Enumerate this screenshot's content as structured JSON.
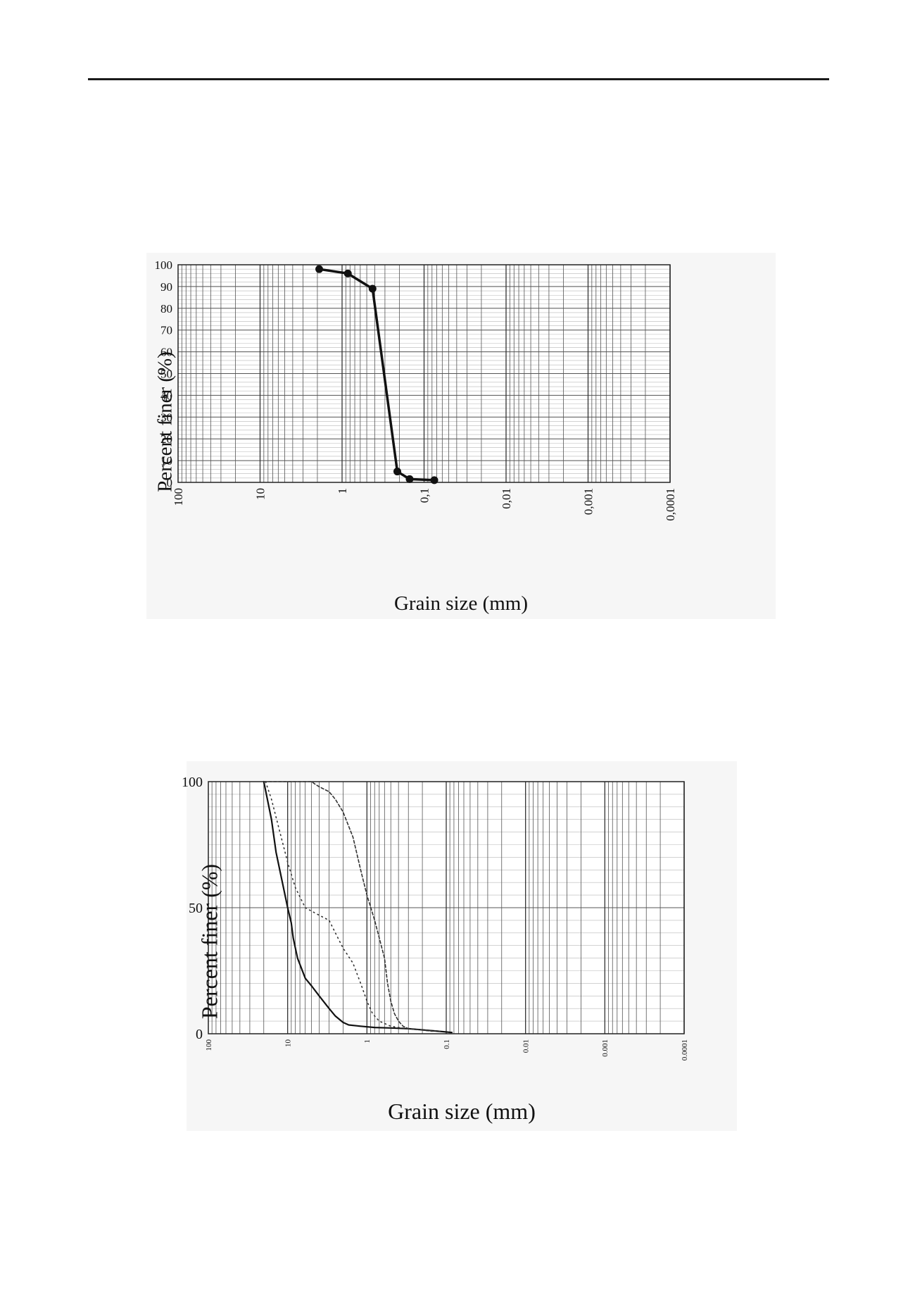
{
  "chart_data": [
    {
      "type": "line",
      "title": "",
      "xlabel": "Grain size (mm)",
      "ylabel": "Percent finer (%)",
      "x_scale": "log",
      "x_reversed": true,
      "xlim": [
        100,
        0.0001
      ],
      "ylim": [
        0,
        100
      ],
      "x_tick_labels": [
        "100",
        "10",
        "1",
        "0,1",
        "0,01",
        "0,001",
        "0,0001"
      ],
      "y_tick_labels": [
        "0",
        "10",
        "20",
        "30",
        "40",
        "50",
        "60",
        "70",
        "80",
        "90",
        "100"
      ],
      "grid": true,
      "markers": true,
      "series": [
        {
          "x": [
            1.9,
            0.85,
            0.425,
            0.212,
            0.15,
            0.075
          ],
          "y": [
            98,
            96,
            89,
            5,
            1.5,
            1
          ]
        }
      ]
    },
    {
      "type": "line",
      "title": "",
      "xlabel": "Grain size (mm)",
      "ylabel": "Percent finer (%)",
      "x_scale": "log",
      "x_reversed": true,
      "xlim": [
        100,
        0.0001
      ],
      "ylim": [
        0,
        100
      ],
      "x_tick_labels": [
        "100",
        "10",
        "1",
        "0.1",
        "0.01",
        "0.001",
        "0.0001"
      ],
      "y_tick_labels": [
        "0",
        "50",
        "100"
      ],
      "grid": true,
      "series": [
        {
          "style": "solid",
          "x": [
            20,
            16,
            14,
            12,
            10,
            9,
            8.5,
            7.5,
            6,
            5,
            4,
            3,
            2.5,
            2,
            1.7,
            1.2,
            0.8,
            0.5,
            0.3,
            0.15,
            0.085
          ],
          "y": [
            100,
            85,
            72,
            62,
            50,
            44,
            38,
            30,
            22,
            19,
            15,
            10,
            7,
            4.5,
            3.5,
            3,
            2.5,
            2.3,
            2,
            1.2,
            0.5
          ]
        },
        {
          "style": "dotted",
          "x": [
            19,
            16,
            13,
            10,
            8,
            6,
            4,
            3,
            2.5,
            2,
            1.5,
            1.2,
            1.0,
            0.85,
            0.7,
            0.5,
            0.4,
            0.3,
            0.2,
            0.12
          ],
          "y": [
            100,
            93,
            82,
            68,
            58,
            50,
            47,
            45,
            40,
            34,
            28,
            20,
            13,
            8,
            5,
            3,
            2.5,
            2,
            1.5,
            1
          ]
        },
        {
          "style": "dashed",
          "x": [
            20,
            14,
            9,
            6,
            5,
            4.5,
            4,
            3,
            2.5,
            2,
            1.5,
            1.2,
            1.0,
            0.8,
            0.6,
            0.55,
            0.5,
            0.45,
            0.4,
            0.35,
            0.3,
            0.15
          ],
          "y": [
            100,
            100,
            100,
            100,
            100,
            99,
            98,
            96,
            93,
            88,
            78,
            65,
            55,
            45,
            30,
            20,
            13,
            8,
            5,
            3,
            2,
            1
          ]
        }
      ]
    }
  ]
}
